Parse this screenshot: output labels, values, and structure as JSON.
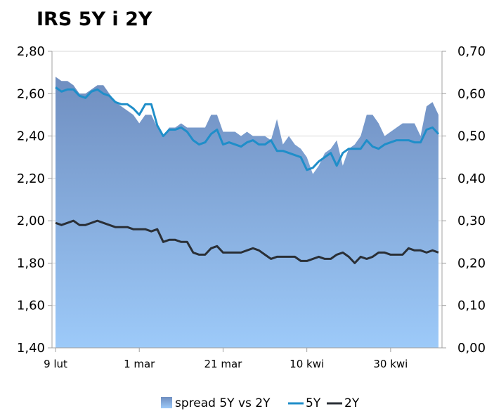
{
  "title": "IRS 5Y i 2Y",
  "chart_data": {
    "type": "line",
    "title": "IRS 5Y i 2Y",
    "left_axis": {
      "ylim": [
        1.4,
        2.8
      ],
      "ticks": [
        "1,40",
        "1,60",
        "1,80",
        "2,00",
        "2,20",
        "2,40",
        "2,60",
        "2,80"
      ]
    },
    "right_axis": {
      "ylim": [
        0.0,
        0.7
      ],
      "ticks": [
        "0,00",
        "0,10",
        "0,20",
        "0,30",
        "0,40",
        "0,50",
        "0,60",
        "0,70"
      ]
    },
    "x_tick_labels": [
      "9 lut",
      "1 mar",
      "21 mar",
      "10 kwi",
      "30 kwi"
    ],
    "x_tick_index": [
      0,
      14,
      28,
      42,
      56
    ],
    "grid": "horizontal",
    "legend_position": "bottom",
    "colors": {
      "spread_top": "#6f8ec0",
      "spread_bottom": "#9dcaf9",
      "5Y": "#1f8ec9",
      "2Y": "#2a2f36",
      "grid": "#d9d9d9",
      "axis": "#a0a0a0"
    },
    "series": [
      {
        "name": "spread 5Y vs 2Y",
        "type": "area",
        "axis": "right",
        "values": [
          0.64,
          0.63,
          0.63,
          0.62,
          0.6,
          0.6,
          0.61,
          0.62,
          0.62,
          0.6,
          0.58,
          0.57,
          0.56,
          0.55,
          0.53,
          0.55,
          0.55,
          0.52,
          0.5,
          0.52,
          0.52,
          0.53,
          0.52,
          0.52,
          0.52,
          0.52,
          0.55,
          0.55,
          0.51,
          0.51,
          0.51,
          0.5,
          0.51,
          0.5,
          0.5,
          0.5,
          0.49,
          0.54,
          0.48,
          0.5,
          0.48,
          0.47,
          0.45,
          0.41,
          0.43,
          0.46,
          0.47,
          0.49,
          0.43,
          0.47,
          0.48,
          0.5,
          0.55,
          0.55,
          0.53,
          0.5,
          0.51,
          0.52,
          0.53,
          0.53,
          0.53,
          0.5,
          0.57,
          0.58,
          0.55
        ]
      },
      {
        "name": "5Y",
        "type": "line",
        "axis": "left",
        "values": [
          2.63,
          2.61,
          2.62,
          2.62,
          2.59,
          2.58,
          2.61,
          2.62,
          2.6,
          2.59,
          2.56,
          2.55,
          2.55,
          2.53,
          2.5,
          2.55,
          2.55,
          2.45,
          2.4,
          2.43,
          2.43,
          2.44,
          2.42,
          2.38,
          2.36,
          2.37,
          2.41,
          2.43,
          2.36,
          2.37,
          2.36,
          2.35,
          2.37,
          2.38,
          2.36,
          2.36,
          2.38,
          2.33,
          2.33,
          2.32,
          2.31,
          2.3,
          2.24,
          2.25,
          2.28,
          2.3,
          2.32,
          2.26,
          2.32,
          2.34,
          2.34,
          2.34,
          2.38,
          2.35,
          2.34,
          2.36,
          2.37,
          2.38,
          2.38,
          2.38,
          2.37,
          2.37,
          2.43,
          2.44,
          2.41
        ]
      },
      {
        "name": "2Y",
        "type": "line",
        "axis": "left",
        "values": [
          1.99,
          1.98,
          1.99,
          2.0,
          1.98,
          1.98,
          1.99,
          2.0,
          1.99,
          1.98,
          1.97,
          1.97,
          1.97,
          1.96,
          1.96,
          1.96,
          1.95,
          1.96,
          1.9,
          1.91,
          1.91,
          1.9,
          1.9,
          1.85,
          1.84,
          1.84,
          1.87,
          1.88,
          1.85,
          1.85,
          1.85,
          1.85,
          1.86,
          1.87,
          1.86,
          1.84,
          1.82,
          1.83,
          1.83,
          1.83,
          1.83,
          1.81,
          1.81,
          1.82,
          1.83,
          1.82,
          1.82,
          1.84,
          1.85,
          1.83,
          1.8,
          1.83,
          1.82,
          1.83,
          1.85,
          1.85,
          1.84,
          1.84,
          1.84,
          1.87,
          1.86,
          1.86,
          1.85,
          1.86,
          1.85
        ]
      }
    ]
  }
}
